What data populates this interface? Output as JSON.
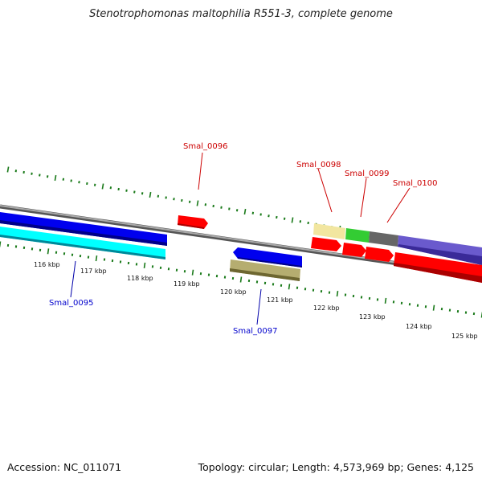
{
  "title": "Stenotrophomonas maltophilia R551-3, complete genome",
  "accession": "Accession: NC_011071",
  "summary": "Topology: circular; Length: 4,573,969 bp; Genes: 4,125",
  "ticks": [
    "116 kbp",
    "117 kbp",
    "118 kbp",
    "119 kbp",
    "120 kbp",
    "121 kbp",
    "122 kbp",
    "123 kbp",
    "124 kbp",
    "125 kbp"
  ],
  "genes": [
    {
      "label": "Smal_0095",
      "color": "#0000cc"
    },
    {
      "label": "Smal_0096",
      "color": "#cc0000"
    },
    {
      "label": "Smal_0097",
      "color": "#0000cc"
    },
    {
      "label": "Smal_0098",
      "color": "#cc0000"
    },
    {
      "label": "Smal_0099",
      "color": "#cc0000"
    },
    {
      "label": "Smal_0100",
      "color": "#cc0000"
    }
  ],
  "colors": {
    "backbone": "#8a8a8a",
    "ticks": "#1a7a1a",
    "cds_forward": "#ff0000",
    "cds_reverse": "#0000ee",
    "gc_skew": "#00ffff",
    "feature_tan": "#b5ad70",
    "feature_cream": "#f2e6a0",
    "feature_green": "#33cc33",
    "feature_grey": "#666666",
    "feature_purple": "#6a5acd"
  }
}
